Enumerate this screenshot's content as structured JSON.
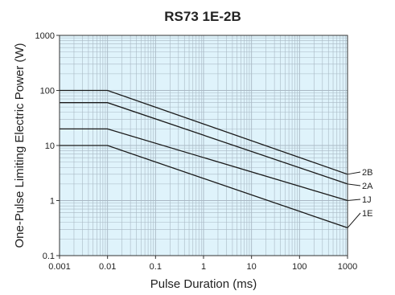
{
  "chart_data": {
    "type": "line",
    "title": "RS73 1E-2B",
    "xlabel": "Pulse Duration (ms)",
    "ylabel": "One-Pulse Limiting Electric Power (W)",
    "xscale": "log",
    "yscale": "log",
    "xlim": [
      0.001,
      1000
    ],
    "ylim": [
      0.1,
      1000
    ],
    "x_ticks": [
      "0.001",
      "0.01",
      "0.1",
      "1",
      "10",
      "100",
      "1000"
    ],
    "y_ticks": [
      "1000",
      "100",
      "10",
      "1",
      "0.1"
    ],
    "grid": true,
    "plot_background": "#dff3fb",
    "grid_color": "#a9b8c4",
    "line_color": "#1a1a1a",
    "series": [
      {
        "name": "2B",
        "points": [
          [
            0.001,
            100
          ],
          [
            0.01,
            100
          ],
          [
            1000,
            3
          ]
        ]
      },
      {
        "name": "2A",
        "points": [
          [
            0.001,
            60
          ],
          [
            0.01,
            60
          ],
          [
            1000,
            2
          ]
        ]
      },
      {
        "name": "1J",
        "points": [
          [
            0.001,
            20
          ],
          [
            0.01,
            20
          ],
          [
            1000,
            1
          ]
        ]
      },
      {
        "name": "1E",
        "points": [
          [
            0.001,
            10
          ],
          [
            0.01,
            10
          ],
          [
            1000,
            0.32
          ]
        ]
      }
    ]
  }
}
